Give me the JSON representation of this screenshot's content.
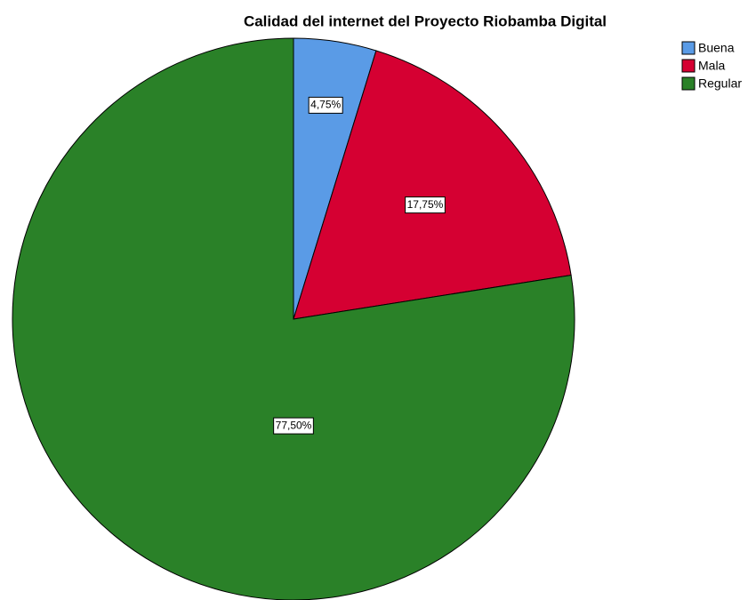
{
  "chart_data": {
    "type": "pie",
    "title": "Calidad del internet del Proyecto Riobamba Digital",
    "categories": [
      "Buena",
      "Mala",
      "Regular"
    ],
    "values": [
      4.75,
      17.75,
      77.5
    ],
    "value_labels": [
      "4,75%",
      "17,75%",
      "77,50%"
    ],
    "colors": [
      "#5a9be6",
      "#d50032",
      "#2a8128"
    ],
    "legend": "top-right"
  }
}
